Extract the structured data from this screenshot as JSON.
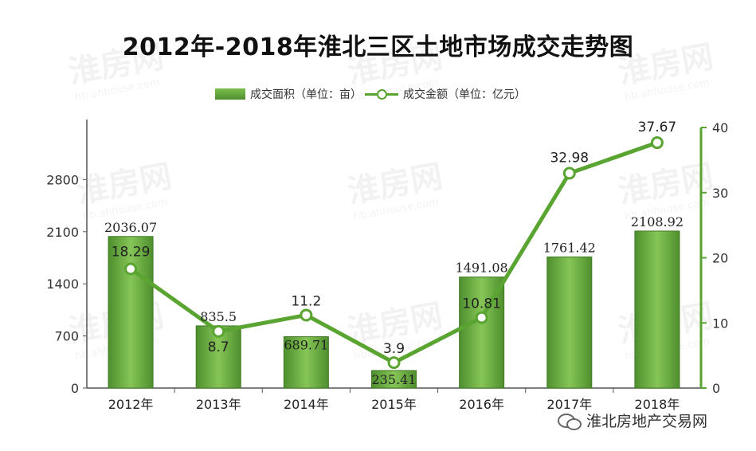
{
  "chart_data": {
    "type": "bar",
    "title": "2012年-2018年淮北三区土地市场成交走势图",
    "categories": [
      "2012年",
      "2013年",
      "2014年",
      "2015年",
      "2016年",
      "2017年",
      "2018年"
    ],
    "series": [
      {
        "name": "成交面积（单位：亩）",
        "kind": "bar",
        "axis": "left",
        "values": [
          2036.07,
          835.5,
          689.71,
          235.41,
          1491.08,
          1761.42,
          2108.92
        ],
        "labels": [
          "2036.07",
          "835.5",
          "689.71",
          "235.41",
          "1491.08",
          "1761.42",
          "2108.92"
        ]
      },
      {
        "name": "成交金额（单位：亿元）",
        "kind": "line",
        "axis": "right",
        "values": [
          18.29,
          8.7,
          11.2,
          3.9,
          10.81,
          32.98,
          37.67
        ],
        "labels": [
          "18.29",
          "8.7",
          "11.2",
          "3.9",
          "10.81",
          "32.98",
          "37.67"
        ]
      }
    ],
    "y_left": {
      "ylim": [
        0,
        3500
      ],
      "ticks": [
        "0",
        "700",
        "1400",
        "2100",
        "2800"
      ]
    },
    "y_right": {
      "ylim": [
        0,
        40
      ],
      "ticks": [
        "0",
        "10",
        "20",
        "30",
        "40"
      ]
    },
    "grid": false,
    "legend_position": "top-center",
    "colors": {
      "bar": "#5c9e3a",
      "bar_light": "#82c053",
      "line": "#5aa532",
      "axis_right": "#5aa532",
      "axis_left": "#444444"
    }
  },
  "watermark": {
    "text": "淮房网",
    "url": "hb.ahhouse.com"
  },
  "footer": {
    "brand": "淮北房地产交易网",
    "icon": "wechat-icon"
  }
}
